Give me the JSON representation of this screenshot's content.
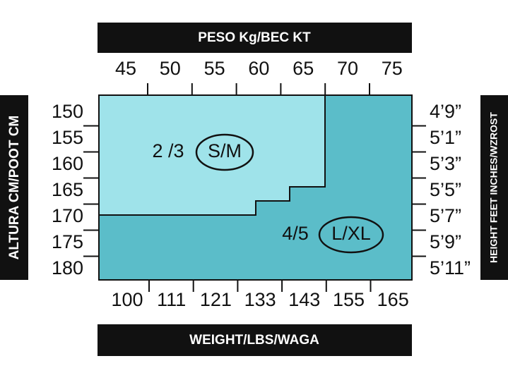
{
  "top_axis": {
    "title": "PESO Kg/BEC KT",
    "labels": [
      45,
      50,
      55,
      60,
      65,
      70,
      75
    ]
  },
  "left_axis": {
    "title": "ALTURA CM/POOT CM",
    "labels": [
      150,
      155,
      160,
      165,
      170,
      175,
      180
    ]
  },
  "right_axis": {
    "title": "HEIGHT FEET INCHES/WZROST",
    "labels": [
      "4’9”",
      "5’1”",
      "5’3”",
      "5’5”",
      "5’7”",
      "5’9”",
      "5’11”"
    ]
  },
  "bottom_axis": {
    "title": "WEIGHT/LBS/WAGA",
    "labels": [
      100,
      111,
      121,
      133,
      143,
      155,
      165
    ]
  },
  "zones": [
    {
      "sizes": "2 /3",
      "label": "S/M"
    },
    {
      "sizes": "4/5",
      "label": "L/XL"
    }
  ]
}
